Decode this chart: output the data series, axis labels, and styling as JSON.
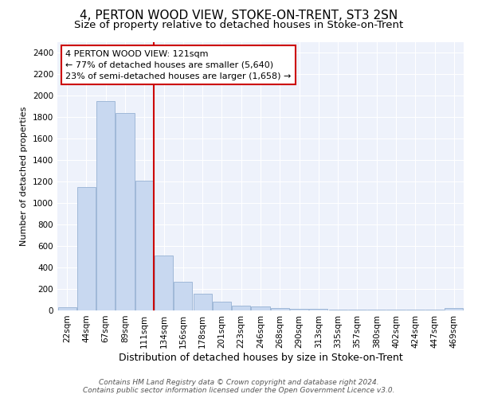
{
  "title": "4, PERTON WOOD VIEW, STOKE-ON-TRENT, ST3 2SN",
  "subtitle": "Size of property relative to detached houses in Stoke-on-Trent",
  "xlabel": "Distribution of detached houses by size in Stoke-on-Trent",
  "ylabel": "Number of detached properties",
  "categories": [
    "22sqm",
    "44sqm",
    "67sqm",
    "89sqm",
    "111sqm",
    "134sqm",
    "156sqm",
    "178sqm",
    "201sqm",
    "223sqm",
    "246sqm",
    "268sqm",
    "290sqm",
    "313sqm",
    "335sqm",
    "357sqm",
    "380sqm",
    "402sqm",
    "424sqm",
    "447sqm",
    "469sqm"
  ],
  "values": [
    30,
    1150,
    1950,
    1840,
    1210,
    510,
    265,
    155,
    85,
    45,
    37,
    20,
    18,
    15,
    10,
    8,
    7,
    5,
    5,
    4,
    20
  ],
  "bar_color": "#c8d8f0",
  "bar_edge_color": "#a0b8d8",
  "vline_color": "#cc0000",
  "annotation_text": "4 PERTON WOOD VIEW: 121sqm\n← 77% of detached houses are smaller (5,640)\n23% of semi-detached houses are larger (1,658) →",
  "annotation_box_color": "#ffffff",
  "annotation_box_edge_color": "#cc0000",
  "ylim": [
    0,
    2500
  ],
  "yticks": [
    0,
    200,
    400,
    600,
    800,
    1000,
    1200,
    1400,
    1600,
    1800,
    2000,
    2200,
    2400
  ],
  "background_color": "#eef2fb",
  "grid_color": "#ffffff",
  "footer_line1": "Contains HM Land Registry data © Crown copyright and database right 2024.",
  "footer_line2": "Contains public sector information licensed under the Open Government Licence v3.0.",
  "title_fontsize": 11,
  "subtitle_fontsize": 9.5,
  "xlabel_fontsize": 9,
  "ylabel_fontsize": 8,
  "tick_fontsize": 7.5,
  "annotation_fontsize": 8,
  "footer_fontsize": 6.5
}
